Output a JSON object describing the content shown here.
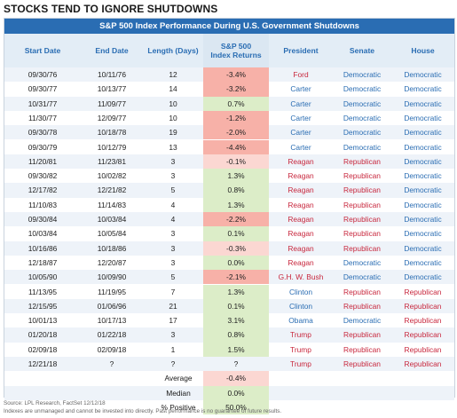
{
  "title": "STOCKS TEND TO IGNORE SHUTDOWNS",
  "banner": "S&P 500 Index Performance During U.S. Government Shutdowns",
  "headers": {
    "start": "Start Date",
    "end": "End Date",
    "length": "Length (Days)",
    "ret1": "S&P 500",
    "ret2": "Index Returns",
    "president": "President",
    "senate": "Senate",
    "house": "House"
  },
  "colors": {
    "banner": "#2a6db3",
    "democratic": "#2a6db3",
    "republican": "#c8283e",
    "negative_strong": "#f7b1a8",
    "negative_light": "#fbd7d2",
    "positive": "#dcedc8"
  },
  "rows": [
    {
      "start": "09/30/76",
      "end": "10/11/76",
      "length": "12",
      "ret": "-3.4%",
      "retv": -3.4,
      "president": "Ford",
      "pres_party": "rep",
      "senate": "Democratic",
      "house": "Democratic"
    },
    {
      "start": "09/30/77",
      "end": "10/13/77",
      "length": "14",
      "ret": "-3.2%",
      "retv": -3.2,
      "president": "Carter",
      "pres_party": "dem",
      "senate": "Democratic",
      "house": "Democratic"
    },
    {
      "start": "10/31/77",
      "end": "11/09/77",
      "length": "10",
      "ret": "0.7%",
      "retv": 0.7,
      "president": "Carter",
      "pres_party": "dem",
      "senate": "Democratic",
      "house": "Democratic"
    },
    {
      "start": "11/30/77",
      "end": "12/09/77",
      "length": "10",
      "ret": "-1.2%",
      "retv": -1.2,
      "president": "Carter",
      "pres_party": "dem",
      "senate": "Democratic",
      "house": "Democratic"
    },
    {
      "start": "09/30/78",
      "end": "10/18/78",
      "length": "19",
      "ret": "-2.0%",
      "retv": -2.0,
      "president": "Carter",
      "pres_party": "dem",
      "senate": "Democratic",
      "house": "Democratic"
    },
    {
      "start": "09/30/79",
      "end": "10/12/79",
      "length": "13",
      "ret": "-4.4%",
      "retv": -4.4,
      "president": "Carter",
      "pres_party": "dem",
      "senate": "Democratic",
      "house": "Democratic"
    },
    {
      "start": "11/20/81",
      "end": "11/23/81",
      "length": "3",
      "ret": "-0.1%",
      "retv": -0.1,
      "president": "Reagan",
      "pres_party": "rep",
      "senate": "Republican",
      "house": "Democratic"
    },
    {
      "start": "09/30/82",
      "end": "10/02/82",
      "length": "3",
      "ret": "1.3%",
      "retv": 1.3,
      "president": "Reagan",
      "pres_party": "rep",
      "senate": "Republican",
      "house": "Democratic"
    },
    {
      "start": "12/17/82",
      "end": "12/21/82",
      "length": "5",
      "ret": "0.8%",
      "retv": 0.8,
      "president": "Reagan",
      "pres_party": "rep",
      "senate": "Republican",
      "house": "Democratic"
    },
    {
      "start": "11/10/83",
      "end": "11/14/83",
      "length": "4",
      "ret": "1.3%",
      "retv": 1.3,
      "president": "Reagan",
      "pres_party": "rep",
      "senate": "Republican",
      "house": "Democratic"
    },
    {
      "start": "09/30/84",
      "end": "10/03/84",
      "length": "4",
      "ret": "-2.2%",
      "retv": -2.2,
      "president": "Reagan",
      "pres_party": "rep",
      "senate": "Republican",
      "house": "Democratic"
    },
    {
      "start": "10/03/84",
      "end": "10/05/84",
      "length": "3",
      "ret": "0.1%",
      "retv": 0.1,
      "president": "Reagan",
      "pres_party": "rep",
      "senate": "Republican",
      "house": "Democratic"
    },
    {
      "start": "10/16/86",
      "end": "10/18/86",
      "length": "3",
      "ret": "-0.3%",
      "retv": -0.3,
      "president": "Reagan",
      "pres_party": "rep",
      "senate": "Republican",
      "house": "Democratic"
    },
    {
      "start": "12/18/87",
      "end": "12/20/87",
      "length": "3",
      "ret": "0.0%",
      "retv": 0.0,
      "president": "Reagan",
      "pres_party": "rep",
      "senate": "Democratic",
      "house": "Democratic"
    },
    {
      "start": "10/05/90",
      "end": "10/09/90",
      "length": "5",
      "ret": "-2.1%",
      "retv": -2.1,
      "president": "G.H. W. Bush",
      "pres_party": "rep",
      "senate": "Democratic",
      "house": "Democratic"
    },
    {
      "start": "11/13/95",
      "end": "11/19/95",
      "length": "7",
      "ret": "1.3%",
      "retv": 1.3,
      "president": "Clinton",
      "pres_party": "dem",
      "senate": "Republican",
      "house": "Republican"
    },
    {
      "start": "12/15/95",
      "end": "01/06/96",
      "length": "21",
      "ret": "0.1%",
      "retv": 0.1,
      "president": "Clinton",
      "pres_party": "dem",
      "senate": "Republican",
      "house": "Republican"
    },
    {
      "start": "10/01/13",
      "end": "10/17/13",
      "length": "17",
      "ret": "3.1%",
      "retv": 3.1,
      "president": "Obama",
      "pres_party": "dem",
      "senate": "Democratic",
      "house": "Republican"
    },
    {
      "start": "01/20/18",
      "end": "01/22/18",
      "length": "3",
      "ret": "0.8%",
      "retv": 0.8,
      "president": "Trump",
      "pres_party": "rep",
      "senate": "Republican",
      "house": "Republican"
    },
    {
      "start": "02/09/18",
      "end": "02/09/18",
      "length": "1",
      "ret": "1.5%",
      "retv": 1.5,
      "president": "Trump",
      "pres_party": "rep",
      "senate": "Republican",
      "house": "Republican"
    },
    {
      "start": "12/21/18",
      "end": "?",
      "length": "?",
      "ret": "?",
      "retv": null,
      "president": "Trump",
      "pres_party": "rep",
      "senate": "Republican",
      "house": "Republican"
    }
  ],
  "summary": [
    {
      "label": "Average",
      "value": "-0.4%",
      "valv": -0.4
    },
    {
      "label": "Median",
      "value": "0.0%",
      "valv": 0.0
    },
    {
      "label": "% Positive",
      "value": "50.0%",
      "valv": 50.0
    }
  ],
  "footnote1": "Source: LPL Research, FactSet   12/12/18",
  "footnote2": "Indexes are unmanaged and cannot be invested into directly. Past performance is no guarantee of future results."
}
